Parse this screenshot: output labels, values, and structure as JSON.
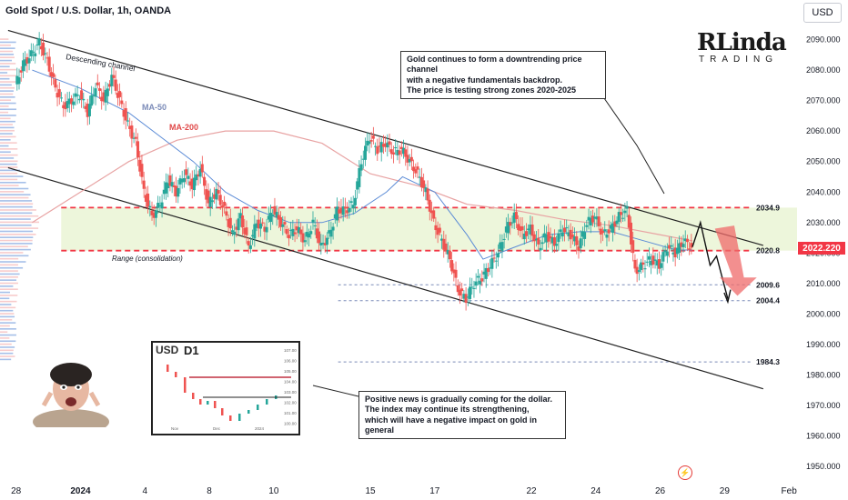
{
  "header": {
    "title": "Gold Spot / U.S. Dollar, 1h, OANDA",
    "currency_button": "USD"
  },
  "current_price": "2022.220",
  "logo": {
    "big": "RLinda",
    "small": "TRADING"
  },
  "inset": {
    "title": "USD",
    "timeframe": "D1",
    "x_ticks": [
      "Nov",
      "Dec",
      "2024"
    ],
    "y_ticks": [
      "107.00",
      "106.00",
      "105.00",
      "104.00",
      "103.00",
      "102.00",
      "101.00",
      "100.00"
    ]
  },
  "notes": {
    "top": "Gold continues to form a downtrending price channel\nwith a negative fundamentals backdrop.\nThe price is testing strong zones 2020-2025",
    "bottom": "Positive news is gradually coming for the dollar.\nThe index may continue its strengthening,\nwhich will have a negative impact on gold in general"
  },
  "colors": {
    "up": "#26a69a",
    "down": "#ef5350",
    "ma50": "#5b8bd6",
    "ma200": "#e8a3a3",
    "zone": "#e8f4d2",
    "level": "#f23645",
    "dashed_level": "#7b8bb8"
  },
  "chart_data": {
    "type": "candlestick",
    "title": "Gold Spot / U.S. Dollar, 1h, OANDA",
    "ylim": [
      1945,
      2097
    ],
    "y_ticks": [
      1950,
      1960,
      1970,
      1980,
      1990,
      2000,
      2010,
      2020,
      2030,
      2040,
      2050,
      2060,
      2070,
      2080,
      2090
    ],
    "x_ticks": [
      {
        "label": "28",
        "x": 0
      },
      {
        "label": "2024",
        "x": 4
      },
      {
        "label": "4",
        "x": 8
      },
      {
        "label": "8",
        "x": 12
      },
      {
        "label": "10",
        "x": 16
      },
      {
        "label": "15",
        "x": 22
      },
      {
        "label": "17",
        "x": 26
      },
      {
        "label": "22",
        "x": 32
      },
      {
        "label": "24",
        "x": 36
      },
      {
        "label": "26",
        "x": 40
      },
      {
        "label": "29",
        "x": 44
      },
      {
        "label": "Feb",
        "x": 48
      }
    ],
    "x_domain": [
      -1,
      48.5
    ],
    "price_path": [
      [
        0,
        2075
      ],
      [
        0.5,
        2082
      ],
      [
        1,
        2085
      ],
      [
        1.5,
        2089
      ],
      [
        2,
        2083
      ],
      [
        2.5,
        2074
      ],
      [
        3,
        2068
      ],
      [
        3.5,
        2070
      ],
      [
        4,
        2072
      ],
      [
        4.5,
        2066
      ],
      [
        5,
        2075
      ],
      [
        5.5,
        2070
      ],
      [
        6,
        2078
      ],
      [
        6.5,
        2070
      ],
      [
        7,
        2062
      ],
      [
        7.5,
        2056
      ],
      [
        8,
        2040
      ],
      [
        8.5,
        2032
      ],
      [
        9,
        2036
      ],
      [
        9.5,
        2044
      ],
      [
        10,
        2040
      ],
      [
        10.5,
        2046
      ],
      [
        11,
        2042
      ],
      [
        11.5,
        2048
      ],
      [
        12,
        2036
      ],
      [
        12.5,
        2040
      ],
      [
        13,
        2034
      ],
      [
        13.5,
        2026
      ],
      [
        14,
        2032
      ],
      [
        14.5,
        2022
      ],
      [
        15,
        2030
      ],
      [
        15.5,
        2028
      ],
      [
        16,
        2034
      ],
      [
        16.5,
        2030
      ],
      [
        17,
        2026
      ],
      [
        17.5,
        2028
      ],
      [
        18,
        2024
      ],
      [
        18.5,
        2030
      ],
      [
        19,
        2022
      ],
      [
        19.5,
        2026
      ],
      [
        20,
        2034
      ],
      [
        20.5,
        2034
      ],
      [
        21,
        2036
      ],
      [
        21.5,
        2050
      ],
      [
        22,
        2058
      ],
      [
        22.5,
        2054
      ],
      [
        23,
        2056
      ],
      [
        23.5,
        2053
      ],
      [
        24,
        2054
      ],
      [
        24.5,
        2050
      ],
      [
        25,
        2046
      ],
      [
        25.5,
        2040
      ],
      [
        26,
        2030
      ],
      [
        26.5,
        2024
      ],
      [
        27,
        2018
      ],
      [
        27.5,
        2008
      ],
      [
        28,
        2005
      ],
      [
        28.5,
        2010
      ],
      [
        29,
        2012
      ],
      [
        29.5,
        2016
      ],
      [
        30,
        2020
      ],
      [
        30.5,
        2028
      ],
      [
        31,
        2032
      ],
      [
        31.5,
        2026
      ],
      [
        32,
        2028
      ],
      [
        32.5,
        2022
      ],
      [
        33,
        2026
      ],
      [
        33.5,
        2023
      ],
      [
        34,
        2028
      ],
      [
        34.5,
        2026
      ],
      [
        35,
        2022
      ],
      [
        35.5,
        2030
      ],
      [
        36,
        2032
      ],
      [
        36.5,
        2026
      ],
      [
        37,
        2028
      ],
      [
        37.5,
        2032
      ],
      [
        38,
        2034
      ],
      [
        38.5,
        2014
      ],
      [
        39,
        2016
      ],
      [
        39.5,
        2018
      ],
      [
        40,
        2016
      ],
      [
        40.5,
        2022
      ],
      [
        41,
        2020
      ],
      [
        41.5,
        2024
      ],
      [
        42,
        2022
      ]
    ],
    "ma50": [
      [
        1,
        2080
      ],
      [
        4,
        2074
      ],
      [
        7,
        2066
      ],
      [
        9,
        2058
      ],
      [
        11,
        2050
      ],
      [
        13,
        2040
      ],
      [
        15,
        2034
      ],
      [
        17,
        2030
      ],
      [
        19,
        2030
      ],
      [
        21,
        2033
      ],
      [
        23,
        2040
      ],
      [
        24,
        2045
      ],
      [
        26,
        2040
      ],
      [
        28,
        2026
      ],
      [
        29,
        2018
      ],
      [
        31,
        2022
      ],
      [
        33,
        2026
      ],
      [
        35,
        2027
      ],
      [
        37,
        2027
      ],
      [
        39,
        2024
      ],
      [
        41,
        2021
      ],
      [
        42,
        2021
      ]
    ],
    "ma200": [
      [
        1,
        2030
      ],
      [
        4,
        2040
      ],
      [
        7,
        2050
      ],
      [
        10,
        2057
      ],
      [
        13,
        2060
      ],
      [
        16,
        2060
      ],
      [
        19,
        2056
      ],
      [
        22,
        2046
      ],
      [
        25,
        2042
      ],
      [
        28,
        2036
      ],
      [
        31,
        2034
      ],
      [
        34,
        2031
      ],
      [
        37,
        2029
      ],
      [
        40,
        2026
      ],
      [
        42,
        2024
      ]
    ],
    "zone": [
      2020.8,
      2034.9
    ],
    "levels": [
      {
        "value": 2034.9,
        "label": "2034.9",
        "style": "dashed-red"
      },
      {
        "value": 2020.8,
        "label": "2020.8",
        "style": "dashed-red"
      },
      {
        "value": 2009.6,
        "label": "2009.6",
        "style": "dashed-blue"
      },
      {
        "value": 2004.4,
        "label": "2004.4",
        "style": "dashed-blue"
      },
      {
        "value": 1984.3,
        "label": "1984.3",
        "style": "dashed-blue"
      }
    ],
    "annotations": {
      "channel": "Descending channel",
      "ma50": "MA-50",
      "ma200": "MA-200",
      "range": "Range (consolidation)"
    }
  }
}
